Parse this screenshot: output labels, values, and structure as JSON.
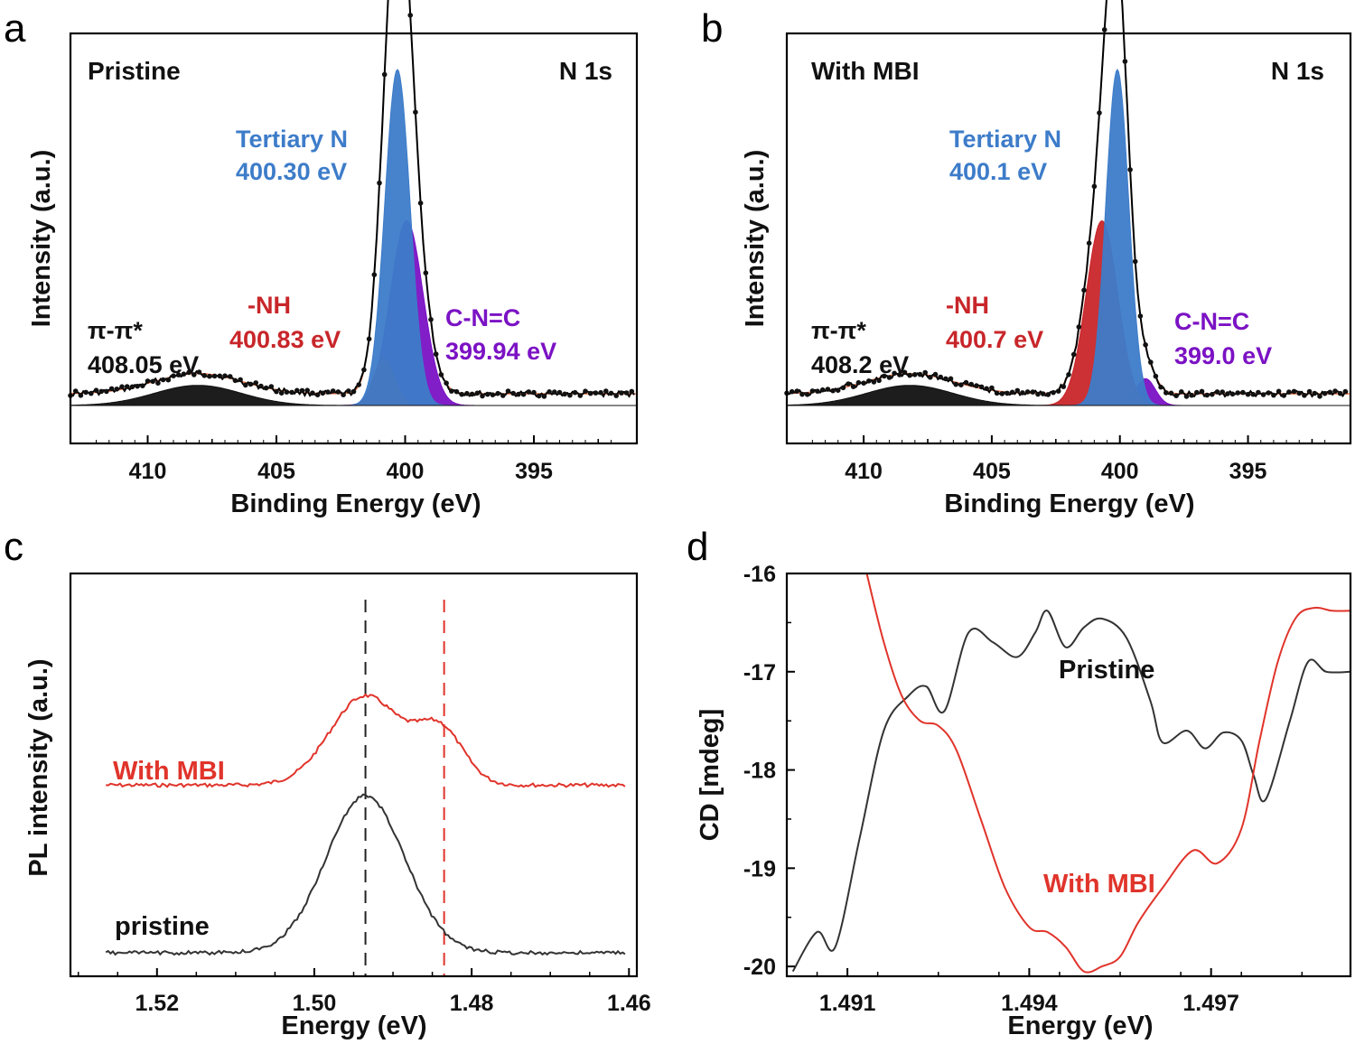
{
  "chart_data": [
    {
      "panel": "a",
      "type": "line",
      "title": "Pristine",
      "core_level": "N 1s",
      "xlabel": "Binding Energy (eV)",
      "ylabel": "Intensity (a.u.)",
      "xlim": [
        413,
        391
      ],
      "x_reversed": true,
      "xticks": [
        410,
        405,
        400,
        395
      ],
      "series": [
        {
          "name": "Tertiary N",
          "center": 400.3,
          "amplitude": 1.0,
          "fwhm": 1.15,
          "color": "#3d7cc9"
        },
        {
          "name": "-NH",
          "center": 400.83,
          "amplitude": 0.14,
          "fwhm": 0.95,
          "color": "#c8262a"
        },
        {
          "name": "C-N=C",
          "center": 399.94,
          "amplitude": 0.55,
          "fwhm": 1.5,
          "color": "#7b12c4"
        },
        {
          "name": "π-π*",
          "center": 408.05,
          "amplitude": 0.06,
          "fwhm": 4.0,
          "color": "#111111"
        }
      ],
      "annotations": [
        {
          "name": "Tertiary N",
          "value": "400.30 eV"
        },
        {
          "name": "-NH",
          "value": "400.83 eV"
        },
        {
          "name": "C-N=C",
          "value": "399.94 eV"
        },
        {
          "name": "π-π*",
          "value": "408.05 eV"
        }
      ]
    },
    {
      "panel": "b",
      "type": "line",
      "title": "With MBI",
      "core_level": "N 1s",
      "xlabel": "Binding Energy (eV)",
      "ylabel": "Intensity (a.u.)",
      "xlim": [
        413,
        391
      ],
      "x_reversed": true,
      "xticks": [
        410,
        405,
        400,
        395
      ],
      "series": [
        {
          "name": "Tertiary N",
          "center": 400.1,
          "amplitude": 1.0,
          "fwhm": 1.05,
          "color": "#3d7cc9"
        },
        {
          "name": "-NH",
          "center": 400.7,
          "amplitude": 0.55,
          "fwhm": 1.45,
          "color": "#c8262a"
        },
        {
          "name": "C-N=C",
          "center": 399.0,
          "amplitude": 0.08,
          "fwhm": 0.9,
          "color": "#7b12c4"
        },
        {
          "name": "π-π*",
          "center": 408.2,
          "amplitude": 0.06,
          "fwhm": 4.0,
          "color": "#111111"
        }
      ],
      "annotations": [
        {
          "name": "Tertiary N",
          "value": "400.1 eV"
        },
        {
          "name": "-NH",
          "value": "400.7 eV"
        },
        {
          "name": "C-N=C",
          "value": "399.0 eV"
        },
        {
          "name": "π-π*",
          "value": "408.2 eV"
        }
      ]
    },
    {
      "panel": "c",
      "type": "line",
      "xlabel": "Energy (eV)",
      "ylabel": "PL intensity (a.u.)",
      "xlim": [
        1.531,
        1.459
      ],
      "x_reversed": true,
      "xticks": [
        1.52,
        1.5,
        1.48,
        1.46
      ],
      "xtick_labels": [
        "1.52",
        "1.50",
        "1.48",
        "1.46"
      ],
      "reference_lines": [
        {
          "x": 1.4935,
          "color": "#222222",
          "style": "dashed"
        },
        {
          "x": 1.4835,
          "color": "#e0342b",
          "style": "dashed"
        }
      ],
      "series": [
        {
          "name": "With MBI",
          "color": "#e0342b",
          "baseline": 0.47,
          "peaks": [
            {
              "center": 1.4935,
              "amplitude": 0.25,
              "sigma": 0.0045
            },
            {
              "center": 1.484,
              "amplitude": 0.15,
              "sigma": 0.003
            }
          ]
        },
        {
          "name": "pristine",
          "color": "#333333",
          "baseline": 0.0,
          "peaks": [
            {
              "center": 1.4935,
              "amplitude": 0.44,
              "sigma": 0.005
            }
          ]
        }
      ]
    },
    {
      "panel": "d",
      "type": "line",
      "xlabel": "Energy (eV)",
      "ylabel": "CD [mdeg]",
      "xlim": [
        1.49,
        1.4993
      ],
      "ylim": [
        -20.1,
        -16
      ],
      "xticks": [
        1.491,
        1.494,
        1.497
      ],
      "xtick_labels": [
        "1.491",
        "1.494",
        "1.497"
      ],
      "yticks": [
        -16,
        -17,
        -18,
        -19,
        -20
      ],
      "series": [
        {
          "name": "Pristine",
          "color": "#333333",
          "x": [
            1.4901,
            1.4905,
            1.4908,
            1.4912,
            1.4916,
            1.492,
            1.4923,
            1.4926,
            1.493,
            1.4934,
            1.4938,
            1.4941,
            1.4943,
            1.4946,
            1.4949,
            1.4952,
            1.4956,
            1.496,
            1.4962,
            1.4966,
            1.4969,
            1.4972,
            1.4975,
            1.4977,
            1.4979,
            1.4983,
            1.4986,
            1.4989,
            1.4993
          ],
          "y": [
            -20.05,
            -19.65,
            -19.8,
            -18.7,
            -17.6,
            -17.25,
            -17.15,
            -17.4,
            -16.6,
            -16.7,
            -16.85,
            -16.6,
            -16.38,
            -16.75,
            -16.55,
            -16.46,
            -16.65,
            -17.3,
            -17.72,
            -17.6,
            -17.78,
            -17.62,
            -17.7,
            -18.05,
            -18.3,
            -17.5,
            -16.9,
            -17.0,
            -17.0
          ]
        },
        {
          "name": "With MBI",
          "color": "#e0342b",
          "x": [
            1.4913,
            1.4916,
            1.4919,
            1.4922,
            1.4925,
            1.4928,
            1.4932,
            1.4936,
            1.494,
            1.4943,
            1.4946,
            1.4949,
            1.4952,
            1.4955,
            1.4958,
            1.4962,
            1.4967,
            1.4971,
            1.4975,
            1.4978,
            1.4981,
            1.4984,
            1.4987,
            1.499,
            1.4993
          ],
          "y": [
            -15.95,
            -16.7,
            -17.25,
            -17.5,
            -17.55,
            -17.8,
            -18.5,
            -19.2,
            -19.6,
            -19.65,
            -19.8,
            -20.05,
            -20.0,
            -19.9,
            -19.55,
            -19.2,
            -18.82,
            -18.95,
            -18.6,
            -17.7,
            -16.9,
            -16.45,
            -16.35,
            -16.38,
            -16.38
          ]
        }
      ]
    }
  ],
  "labels": {
    "panel_a": "a",
    "panel_b": "b",
    "panel_c": "c",
    "panel_d": "d",
    "a_title": "Pristine",
    "a_core": "N 1s",
    "a_tertiary_name": "Tertiary N",
    "a_tertiary_val": "400.30 eV",
    "a_nh_name": "-NH",
    "a_nh_val": "400.83 eV",
    "a_cnc_name": "C-N=C",
    "a_cnc_val": "399.94 eV",
    "a_pi_name": "π-π*",
    "a_pi_val": "408.05 eV",
    "b_title": "With MBI",
    "b_core": "N 1s",
    "b_tertiary_name": "Tertiary N",
    "b_tertiary_val": "400.1 eV",
    "b_nh_name": "-NH",
    "b_nh_val": "400.7 eV",
    "b_cnc_name": "C-N=C",
    "b_cnc_val": "399.0 eV",
    "b_pi_name": "π-π*",
    "b_pi_val": "408.2 eV",
    "xps_xlabel": "Binding Energy (eV)",
    "xps_ylabel": "Intensity (a.u.)",
    "c_with_mbi": "With MBI",
    "c_pristine": "pristine",
    "c_xlabel": "Energy (eV)",
    "c_ylabel": "PL intensity (a.u.)",
    "d_pristine": "Pristine",
    "d_with_mbi": "With MBI",
    "d_xlabel": "Energy (eV)",
    "d_ylabel": "CD [mdeg]"
  }
}
